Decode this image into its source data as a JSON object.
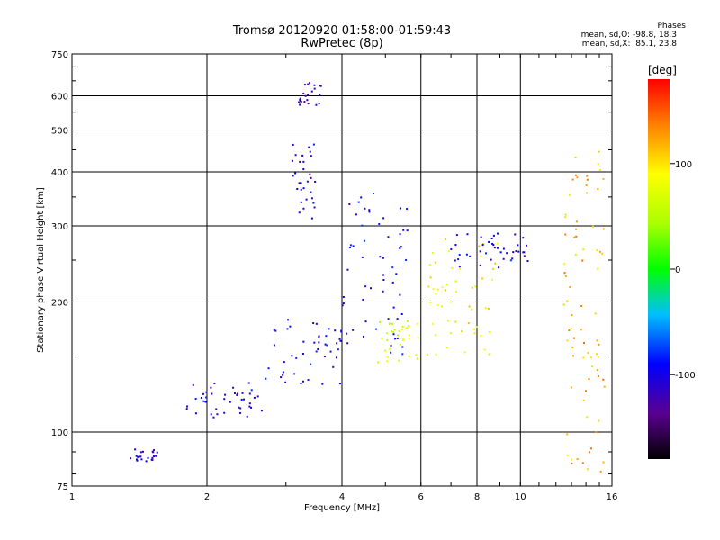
{
  "chart_data": {
    "type": "scatter",
    "title": "Tromsø 20120920 01:58:00-01:59:43",
    "subtitle": "RwPretec (8p)",
    "xlabel": "Frequency [MHz]",
    "ylabel": "Stationary phase Virtual Height [km]",
    "xscale": "log",
    "yscale": "log",
    "xlim": [
      1,
      16
    ],
    "ylim": [
      75,
      750
    ],
    "x_ticks": [
      1,
      2,
      4,
      6,
      8,
      10,
      16
    ],
    "y_ticks": [
      75,
      100,
      200,
      300,
      400,
      500,
      600,
      750
    ],
    "grid": true,
    "colorbar": {
      "label": "[deg]",
      "range": [
        -180,
        180
      ],
      "ticks": [
        100,
        0,
        -100
      ]
    },
    "stats": {
      "heading": "Phases",
      "o_mode": "mean, sd,O: -98.8, 18.3",
      "x_mode": "mean, sd,X:  85.1, 23.8"
    },
    "clusters": [
      {
        "x": [
          1.35,
          1.55
        ],
        "y": [
          85,
          92
        ],
        "phase": -110
      },
      {
        "x": [
          1.8,
          2.7
        ],
        "y": [
          108,
          130
        ],
        "phase": -105
      },
      {
        "x": [
          2.7,
          4.0
        ],
        "y": [
          128,
          185
        ],
        "phase": -100
      },
      {
        "x": [
          3.2,
          3.6
        ],
        "y": [
          570,
          650
        ],
        "phase": -110
      },
      {
        "x": [
          3.1,
          3.5
        ],
        "y": [
          310,
          470
        ],
        "phase": -105
      },
      {
        "x": [
          4.0,
          5.6
        ],
        "y": [
          150,
          360
        ],
        "phase": -100
      },
      {
        "x": [
          4.8,
          6.0
        ],
        "y": [
          145,
          185
        ],
        "phase": 70
      },
      {
        "x": [
          6.2,
          9.0
        ],
        "y": [
          150,
          280
        ],
        "phase": 90
      },
      {
        "x": [
          7.0,
          10.5
        ],
        "y": [
          240,
          290
        ],
        "phase": -100
      },
      {
        "x": [
          12.5,
          15.5
        ],
        "y": [
          80,
          460
        ],
        "phase": 120
      }
    ]
  }
}
